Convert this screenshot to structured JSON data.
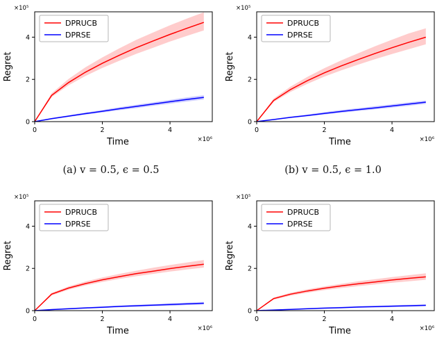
{
  "captions": {
    "a": "(a) v = 0.5, ϵ = 0.5",
    "b": "(b) v = 0.5, ϵ = 1.0"
  },
  "chart_data": [
    {
      "id": "a",
      "type": "line",
      "title": "",
      "xlabel": "Time",
      "ylabel": "Regret",
      "x_offset_label": "×10⁶",
      "y_offset_label": "×10⁵",
      "xlim": [
        0,
        5.25
      ],
      "ylim": [
        0,
        5.2
      ],
      "xticks": [
        0,
        2,
        4
      ],
      "yticks": [
        0,
        2,
        4
      ],
      "legend_position": "upper-left",
      "series": [
        {
          "name": "DPRUCB",
          "color": "#ff0000",
          "x": [
            0,
            0.5,
            1,
            1.5,
            2,
            2.5,
            3,
            3.5,
            4,
            4.5,
            5
          ],
          "y": [
            0,
            1.24,
            1.85,
            2.34,
            2.76,
            3.14,
            3.5,
            3.82,
            4.13,
            4.42,
            4.7
          ],
          "hi": [
            0.02,
            1.34,
            2.02,
            2.57,
            3.04,
            3.47,
            3.87,
            4.22,
            4.56,
            4.88,
            5.18
          ],
          "lo": [
            0,
            1.16,
            1.72,
            2.16,
            2.54,
            2.88,
            3.21,
            3.5,
            3.79,
            4.06,
            4.32
          ]
        },
        {
          "name": "DPRSE",
          "color": "#0000ff",
          "x": [
            0,
            0.5,
            1,
            1.5,
            2,
            2.5,
            3,
            3.5,
            4,
            4.5,
            5
          ],
          "y": [
            0,
            0.14,
            0.26,
            0.38,
            0.49,
            0.61,
            0.72,
            0.83,
            0.94,
            1.05,
            1.15
          ],
          "hi": [
            0.01,
            0.17,
            0.3,
            0.43,
            0.55,
            0.68,
            0.8,
            0.91,
            1.03,
            1.15,
            1.25
          ],
          "lo": [
            0,
            0.11,
            0.22,
            0.33,
            0.43,
            0.54,
            0.64,
            0.75,
            0.85,
            0.95,
            1.05
          ]
        }
      ]
    },
    {
      "id": "b",
      "type": "line",
      "title": "",
      "xlabel": "Time",
      "ylabel": "Regret",
      "x_offset_label": "×10⁶",
      "y_offset_label": "×10⁵",
      "xlim": [
        0,
        5.25
      ],
      "ylim": [
        0,
        5.2
      ],
      "xticks": [
        0,
        2,
        4
      ],
      "yticks": [
        0,
        2,
        4
      ],
      "legend_position": "upper-left",
      "series": [
        {
          "name": "DPRUCB",
          "color": "#ff0000",
          "x": [
            0,
            0.5,
            1,
            1.5,
            2,
            2.5,
            3,
            3.5,
            4,
            4.5,
            5
          ],
          "y": [
            0,
            1.0,
            1.52,
            1.94,
            2.31,
            2.64,
            2.94,
            3.23,
            3.5,
            3.76,
            4.0
          ],
          "hi": [
            0.02,
            1.09,
            1.66,
            2.12,
            2.53,
            2.9,
            3.24,
            3.57,
            3.88,
            4.18,
            4.42
          ],
          "lo": [
            0,
            0.93,
            1.41,
            1.79,
            2.13,
            2.43,
            2.7,
            2.96,
            3.2,
            3.43,
            3.66
          ]
        },
        {
          "name": "DPRSE",
          "color": "#0000ff",
          "x": [
            0,
            0.5,
            1,
            1.5,
            2,
            2.5,
            3,
            3.5,
            4,
            4.5,
            5
          ],
          "y": [
            0,
            0.1,
            0.2,
            0.29,
            0.39,
            0.48,
            0.57,
            0.65,
            0.74,
            0.83,
            0.92
          ],
          "hi": [
            0.01,
            0.12,
            0.24,
            0.34,
            0.45,
            0.55,
            0.64,
            0.73,
            0.82,
            0.91,
            1.0
          ],
          "lo": [
            0,
            0.08,
            0.17,
            0.25,
            0.34,
            0.42,
            0.5,
            0.58,
            0.66,
            0.75,
            0.84
          ]
        }
      ]
    },
    {
      "id": "c",
      "type": "line",
      "title": "",
      "xlabel": "Time",
      "ylabel": "Regret",
      "x_offset_label": "×10⁶",
      "y_offset_label": "×10⁵",
      "xlim": [
        0,
        5.25
      ],
      "ylim": [
        0,
        5.2
      ],
      "xticks": [
        0,
        2,
        4
      ],
      "yticks": [
        0,
        2,
        4
      ],
      "legend_position": "upper-left",
      "series": [
        {
          "name": "DPRUCB",
          "color": "#ff0000",
          "x": [
            0,
            0.5,
            1,
            1.5,
            2,
            2.5,
            3,
            3.5,
            4,
            4.5,
            5
          ],
          "y": [
            0,
            0.78,
            1.07,
            1.28,
            1.46,
            1.61,
            1.75,
            1.87,
            1.99,
            2.1,
            2.2
          ],
          "hi": [
            0.01,
            0.84,
            1.15,
            1.38,
            1.57,
            1.74,
            1.89,
            2.03,
            2.16,
            2.28,
            2.4
          ],
          "lo": [
            0,
            0.72,
            0.99,
            1.19,
            1.36,
            1.5,
            1.63,
            1.74,
            1.85,
            1.95,
            2.04
          ]
        },
        {
          "name": "DPRSE",
          "color": "#0000ff",
          "x": [
            0,
            0.5,
            1,
            1.5,
            2,
            2.5,
            3,
            3.5,
            4,
            4.5,
            5
          ],
          "y": [
            0,
            0.05,
            0.09,
            0.13,
            0.16,
            0.2,
            0.23,
            0.26,
            0.29,
            0.32,
            0.35
          ],
          "hi": [
            0.01,
            0.07,
            0.12,
            0.16,
            0.2,
            0.24,
            0.28,
            0.31,
            0.35,
            0.38,
            0.41
          ],
          "lo": [
            0,
            0.03,
            0.06,
            0.1,
            0.12,
            0.16,
            0.18,
            0.21,
            0.23,
            0.26,
            0.29
          ]
        }
      ]
    },
    {
      "id": "d",
      "type": "line",
      "title": "",
      "xlabel": "Time",
      "ylabel": "Regret",
      "x_offset_label": "×10⁶",
      "y_offset_label": "×10⁵",
      "xlim": [
        0,
        5.25
      ],
      "ylim": [
        0,
        5.2
      ],
      "xticks": [
        0,
        2,
        4
      ],
      "yticks": [
        0,
        2,
        4
      ],
      "legend_position": "upper-left",
      "series": [
        {
          "name": "DPRUCB",
          "color": "#ff0000",
          "x": [
            0,
            0.5,
            1,
            1.5,
            2,
            2.5,
            3,
            3.5,
            4,
            4.5,
            5
          ],
          "y": [
            0,
            0.57,
            0.78,
            0.93,
            1.06,
            1.17,
            1.27,
            1.36,
            1.45,
            1.53,
            1.6
          ],
          "hi": [
            0.01,
            0.62,
            0.85,
            1.01,
            1.15,
            1.27,
            1.39,
            1.49,
            1.59,
            1.68,
            1.77
          ],
          "lo": [
            0,
            0.52,
            0.71,
            0.85,
            0.97,
            1.07,
            1.16,
            1.24,
            1.32,
            1.39,
            1.46
          ]
        },
        {
          "name": "DPRSE",
          "color": "#0000ff",
          "x": [
            0,
            0.5,
            1,
            1.5,
            2,
            2.5,
            3,
            3.5,
            4,
            4.5,
            5
          ],
          "y": [
            0,
            0.03,
            0.06,
            0.09,
            0.12,
            0.14,
            0.17,
            0.19,
            0.21,
            0.23,
            0.25
          ],
          "hi": [
            0.01,
            0.05,
            0.08,
            0.12,
            0.15,
            0.18,
            0.21,
            0.23,
            0.26,
            0.28,
            0.3
          ],
          "lo": [
            0,
            0.02,
            0.04,
            0.07,
            0.09,
            0.11,
            0.13,
            0.15,
            0.17,
            0.19,
            0.21
          ]
        }
      ]
    }
  ]
}
